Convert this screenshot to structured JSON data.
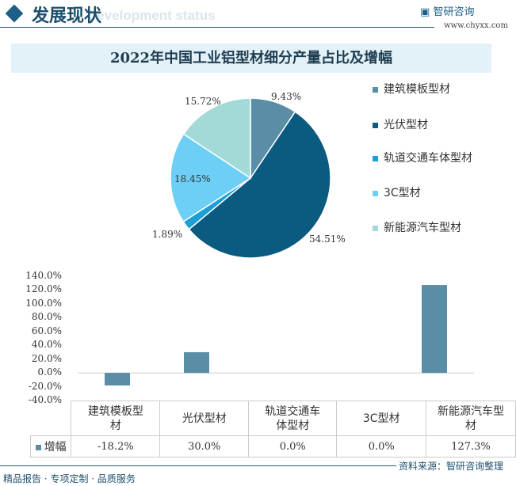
{
  "header": {
    "title": "发展现状",
    "subtitle": "Development status",
    "logo": "智研咨询",
    "url": "www.chyxx.com"
  },
  "footer": {
    "source": "资料来源：智研咨询整理",
    "tagline": "精品报告 · 专项定制 · 品质服务"
  },
  "chart_data": [
    {
      "type": "pie",
      "title": "2022年中国工业铝型材细分产量占比及增幅",
      "labels": [
        "建筑模板型材",
        "光伏型材",
        "轨道交通车体型材",
        "3C型材",
        "新能源汽车型材"
      ],
      "values": [
        9.43,
        54.51,
        1.89,
        18.45,
        15.72
      ],
      "value_labels": [
        "9.43%",
        "54.51%",
        "1.89%",
        "18.45%",
        "15.72%"
      ],
      "colors": [
        "#5a8ea6",
        "#0b5a80",
        "#1e9fd3",
        "#6dcff6",
        "#a3dad8"
      ],
      "legend": "right"
    },
    {
      "type": "bar",
      "series": [
        {
          "name": "增幅",
          "values": [
            -18.2,
            30.0,
            0.0,
            0.0,
            127.3
          ],
          "labels": [
            "-18.2%",
            "30.0%",
            "0.0%",
            "0.0%",
            "127.3%"
          ],
          "color": "#5a8ea6"
        }
      ],
      "categories": [
        "建筑模板型材",
        "光伏型材",
        "轨道交通车体型材",
        "3C型材",
        "新能源汽车型材"
      ],
      "ylim": [
        -40,
        140
      ],
      "yticks": [
        "140.0%",
        "120.0%",
        "100.0%",
        "80.0%",
        "60.0%",
        "40.0%",
        "20.0%",
        "0.0%",
        "-20.0%",
        "-40.0%"
      ]
    }
  ]
}
